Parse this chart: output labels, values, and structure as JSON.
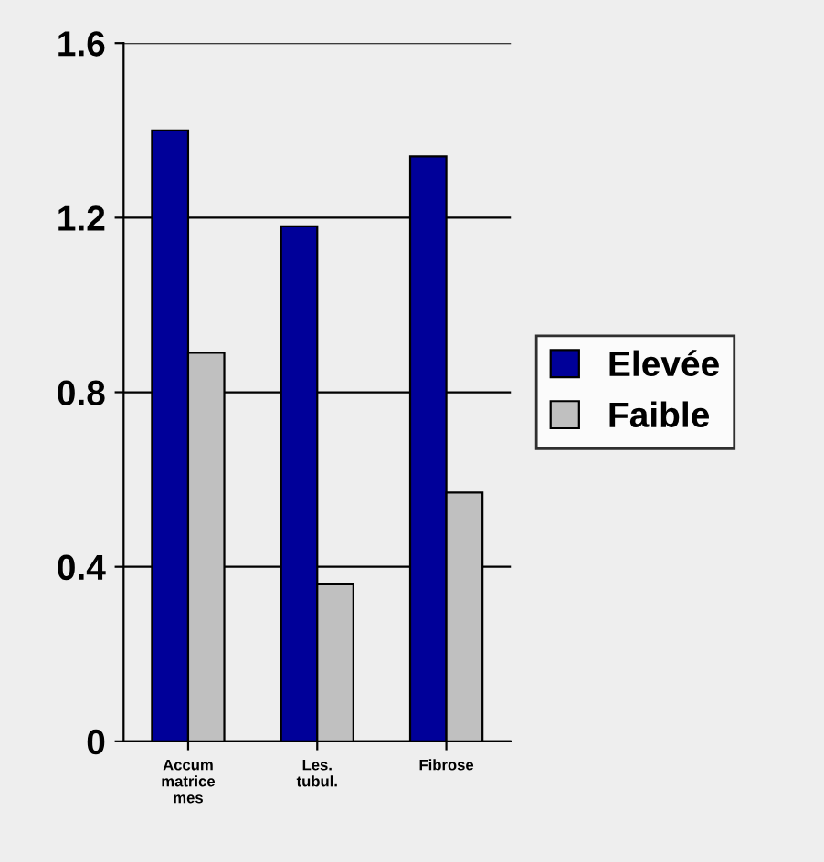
{
  "chart_data": {
    "type": "bar",
    "categories": [
      "Accum\nmatrice\nmes",
      "Les.\ntubul.",
      "Fibrose"
    ],
    "series": [
      {
        "name": "Elevée",
        "color": "#000099",
        "values": [
          1.4,
          1.18,
          1.34
        ]
      },
      {
        "name": "Faible",
        "color": "#c0c0c0",
        "values": [
          0.89,
          0.36,
          0.57
        ]
      }
    ],
    "ylim": [
      0,
      1.6
    ],
    "yticks": [
      0,
      0.4,
      0.8,
      1.2,
      1.6
    ],
    "grid": "y",
    "legend": "right"
  }
}
